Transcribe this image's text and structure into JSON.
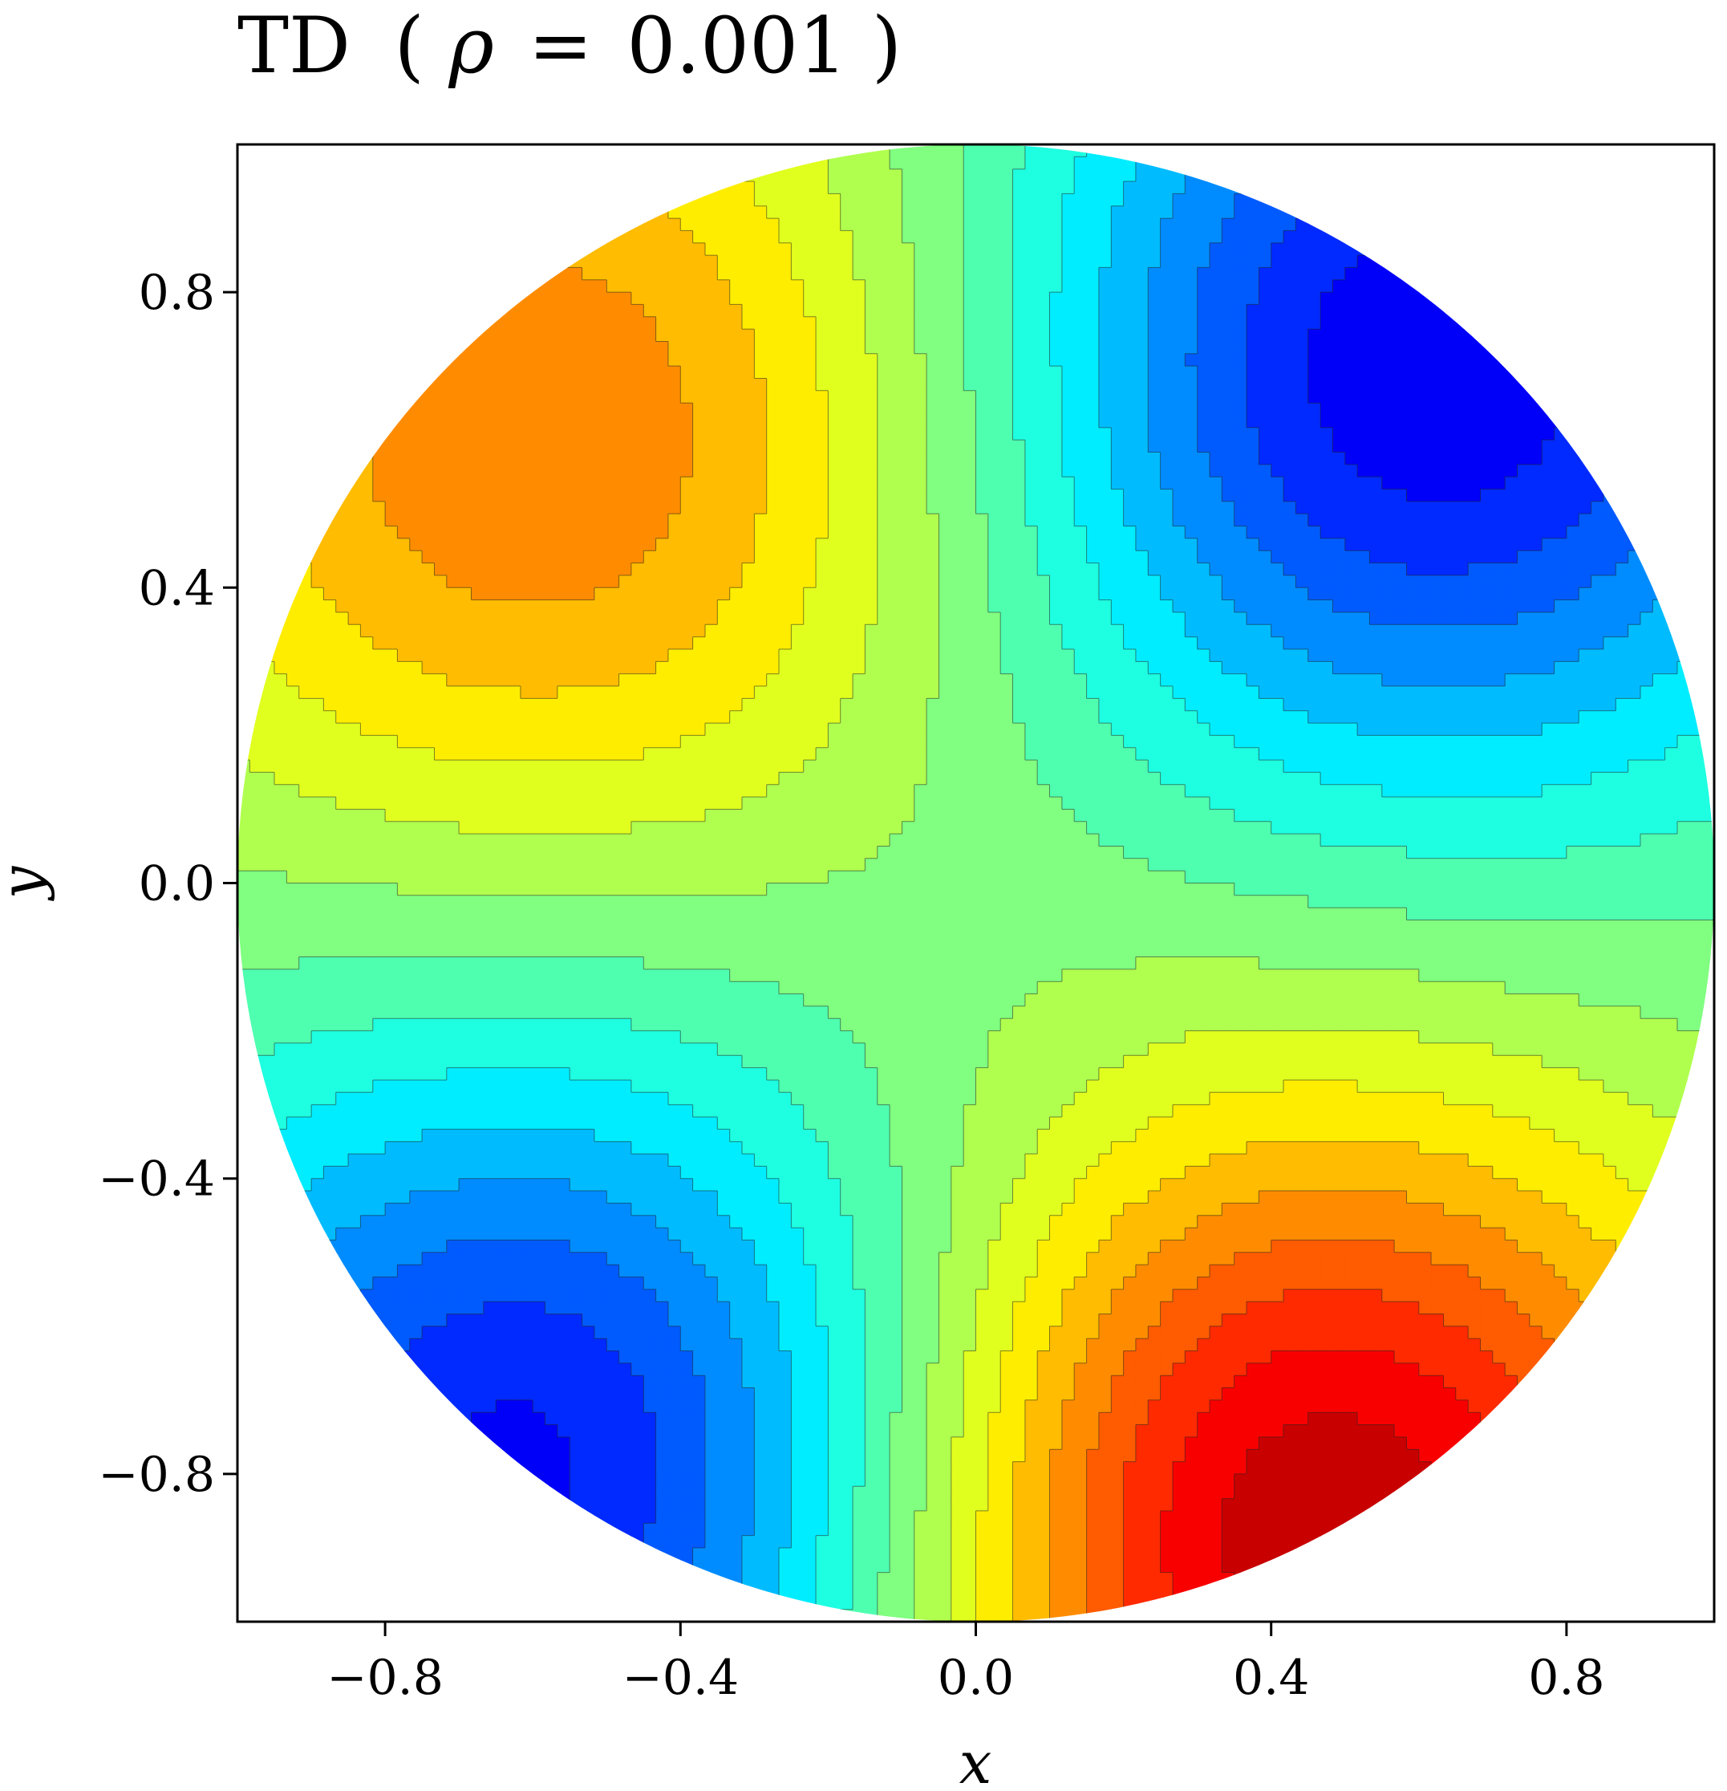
{
  "chart_data": {
    "type": "contour",
    "title_main": "TD",
    "title_paren_open": "(",
    "title_symbol": "ρ",
    "title_equals": "=",
    "title_value": "0.001",
    "title_paren_close": ")",
    "xlabel": "x",
    "ylabel": "y",
    "xlim": [
      -1.0,
      1.0
    ],
    "ylim": [
      -1.0,
      1.0
    ],
    "domain": "unit disk",
    "xticks": [
      -0.8,
      -0.4,
      0.0,
      0.4,
      0.8
    ],
    "yticks": [
      -0.8,
      -0.4,
      0.0,
      0.4,
      0.8
    ],
    "xtick_labels": [
      "−0.8",
      "−0.4",
      "0.0",
      "0.4",
      "0.8"
    ],
    "ytick_labels": [
      "0.8",
      "0.4",
      "0.0",
      "−0.4",
      "−0.8"
    ],
    "colormap": "jet",
    "levels": 21,
    "contour_lines": true,
    "extrema": [
      {
        "kind": "max",
        "x": -0.58,
        "y": 0.6,
        "relative_value": 0.76
      },
      {
        "kind": "max",
        "x": 0.46,
        "y": -0.88,
        "relative_value": 0.95
      },
      {
        "kind": "min",
        "x": 0.62,
        "y": 0.7,
        "relative_value": 0.1
      },
      {
        "kind": "min",
        "x": -0.6,
        "y": -0.8,
        "relative_value": 0.12
      }
    ],
    "saddle": {
      "x": 0.0,
      "y": 0.0,
      "relative_value": 0.5
    }
  }
}
